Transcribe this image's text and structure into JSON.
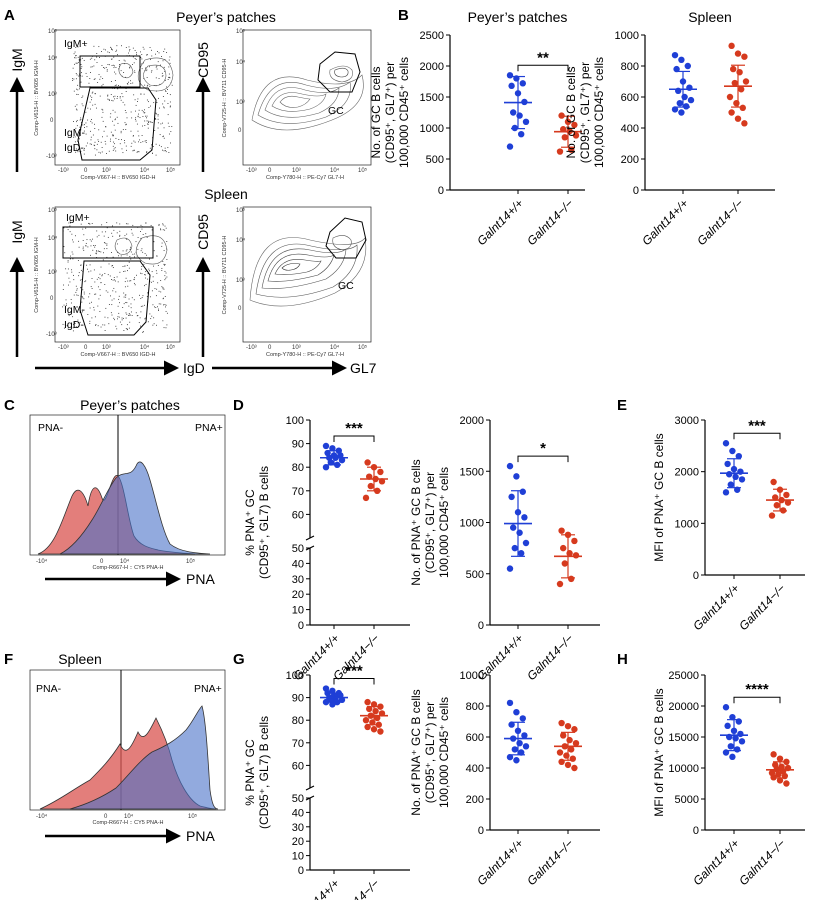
{
  "panels": {
    "A": "A",
    "B": "B",
    "C": "C",
    "D": "D",
    "E": "E",
    "F": "F",
    "G": "G",
    "H": "H"
  },
  "flow": {
    "title_pp": "Peyer’s patches",
    "title_spleen": "Spleen",
    "igm": "IgM",
    "igd": "IgD",
    "cd95": "CD95",
    "gl7": "GL7",
    "pna": "PNA",
    "gate_igm_pos": "IgM+",
    "gate_igm_neg": "IgM-",
    "gate_igd_neg": "IgD-",
    "gate_gc": "GC",
    "pna_neg": "PNA-",
    "pna_pos": "PNA+",
    "ch_igm_pp": "Comp-V615-H :: BV605 IGM-H",
    "ch_igd_pp": "Comp-V667-H :: BV650 IGD-H",
    "ch_cd95_pp": "Comp-V725-H :: BV711 CD95-H",
    "ch_gl7_pp": "Comp-Y780-H :: PE-Cy7 GL7-H",
    "ch_igm_sp": "Comp-V615-H :: BV605 IGM-H",
    "ch_igd_sp": "Comp-V667-H :: BV650 IGD-H",
    "ch_cd95_sp": "Comp-V725-H :: BV711 CD95-H",
    "ch_gl7_sp": "Comp-Y780-H :: PE-Cy7 GL7-H",
    "ch_pna_pp": "Comp-R667-H :: CY5 PNA-H",
    "ch_pna_sp": "Comp-R667-H :: CY5 PNA-H",
    "tk_m3": "-10³",
    "tk_0": "0",
    "tk_3": "10³",
    "tk_4": "10⁴",
    "tk_5": "10⁵",
    "tk_m4": "-10⁴"
  },
  "groups": [
    "Galnt14+/+",
    "Galnt14−/−"
  ],
  "colors": {
    "wt": "#1f3fd6",
    "ko": "#d63a1e",
    "hist_wt": "#4a72c8",
    "hist_ko": "#d9534f"
  },
  "chart_data": [
    {
      "id": "B1",
      "type": "scatter",
      "title": "Peyer’s patches",
      "ylabel_lines": [
        "No. of GC B cells",
        "(CD95⁺, GL7⁺) per",
        "100,000 CD45⁺ cells"
      ],
      "categories": [
        "Galnt14+/+",
        "Galnt14−/−"
      ],
      "ylim": [
        0,
        2500
      ],
      "yticks": [
        0,
        500,
        1000,
        1500,
        2000,
        2500
      ],
      "series": [
        {
          "name": "Galnt14+/+",
          "mean": 1410,
          "sd": 420,
          "values": [
            1850,
            1800,
            1720,
            1680,
            1560,
            1420,
            1250,
            1200,
            1100,
            1000,
            900,
            700
          ]
        },
        {
          "name": "Galnt14−/−",
          "mean": 940,
          "sd": 250,
          "values": [
            1200,
            1100,
            1050,
            980,
            950,
            880,
            850,
            650,
            620
          ]
        }
      ],
      "significance": "**"
    },
    {
      "id": "B2",
      "type": "scatter",
      "title": "Spleen",
      "ylabel_lines": [
        "No. of GC B cells",
        "(CD95⁺, GL7⁺) per",
        "100,000 CD45⁺ cells"
      ],
      "categories": [
        "Galnt14+/+",
        "Galnt14−/−"
      ],
      "ylim": [
        0,
        1000
      ],
      "yticks": [
        0,
        200,
        400,
        600,
        800,
        1000
      ],
      "series": [
        {
          "name": "Galnt14+/+",
          "mean": 650,
          "sd": 115,
          "values": [
            870,
            840,
            800,
            780,
            700,
            660,
            640,
            600,
            580,
            560,
            540,
            520,
            500
          ]
        },
        {
          "name": "Galnt14−/−",
          "mean": 670,
          "sd": 135,
          "values": [
            930,
            880,
            860,
            780,
            760,
            700,
            690,
            650,
            600,
            560,
            530,
            500,
            460,
            430
          ]
        }
      ],
      "significance": ""
    },
    {
      "id": "D1",
      "type": "scatter",
      "broken_axis": true,
      "ylabel_lines": [
        "% PNA⁺ GC",
        "(CD95⁺, GL7) B cells"
      ],
      "categories": [
        "Galnt14+/+",
        "Galnt14−/−"
      ],
      "ylim": [
        0,
        100
      ],
      "yticks": [
        0,
        10,
        20,
        30,
        40,
        50,
        60,
        70,
        80,
        90,
        100
      ],
      "series": [
        {
          "name": "Galnt14+/+",
          "mean": 84,
          "sd": 3,
          "values": [
            89,
            88,
            87,
            86,
            85,
            85,
            84,
            84,
            83,
            82,
            81,
            80
          ]
        },
        {
          "name": "Galnt14−/−",
          "mean": 75,
          "sd": 5,
          "values": [
            82,
            80,
            78,
            76,
            75,
            74,
            72,
            70,
            67
          ]
        }
      ],
      "significance": "***"
    },
    {
      "id": "D2",
      "type": "scatter",
      "ylabel_lines": [
        "No. of PNA⁺ GC B cells",
        "(CD95⁺, GL7⁺) per",
        "100,000 CD45⁺ cells"
      ],
      "categories": [
        "Galnt14+/+",
        "Galnt14−/−"
      ],
      "ylim": [
        0,
        2000
      ],
      "yticks": [
        0,
        500,
        1000,
        1500,
        2000
      ],
      "series": [
        {
          "name": "Galnt14+/+",
          "mean": 990,
          "sd": 320,
          "values": [
            1550,
            1450,
            1300,
            1250,
            1100,
            1050,
            950,
            900,
            800,
            750,
            700,
            550
          ]
        },
        {
          "name": "Galnt14−/−",
          "mean": 670,
          "sd": 210,
          "values": [
            920,
            880,
            820,
            750,
            700,
            680,
            600,
            450,
            400
          ]
        }
      ],
      "significance": "*"
    },
    {
      "id": "E",
      "type": "scatter",
      "ylabel_lines": [
        "MFI of PNA⁺ GC B cells"
      ],
      "categories": [
        "Galnt14+/+",
        "Galnt14−/−"
      ],
      "ylim": [
        0,
        3000
      ],
      "yticks": [
        0,
        1000,
        2000,
        3000
      ],
      "series": [
        {
          "name": "Galnt14+/+",
          "mean": 1970,
          "sd": 280,
          "values": [
            2550,
            2400,
            2300,
            2150,
            2050,
            2000,
            1950,
            1900,
            1850,
            1750,
            1650,
            1600
          ]
        },
        {
          "name": "Galnt14−/−",
          "mean": 1450,
          "sd": 210,
          "values": [
            1800,
            1650,
            1550,
            1500,
            1450,
            1400,
            1350,
            1250,
            1150
          ]
        }
      ],
      "significance": "***"
    },
    {
      "id": "G1",
      "type": "scatter",
      "broken_axis": true,
      "ylabel_lines": [
        "% PNA⁺ GC",
        "(CD95⁺, GL7) B cells"
      ],
      "categories": [
        "Galnt14+/+",
        "Galnt14−/−"
      ],
      "ylim": [
        0,
        100
      ],
      "yticks": [
        0,
        10,
        20,
        30,
        40,
        50,
        60,
        70,
        80,
        90,
        100
      ],
      "series": [
        {
          "name": "Galnt14+/+",
          "mean": 90,
          "sd": 2,
          "values": [
            94,
            93,
            92,
            92,
            91,
            91,
            90,
            90,
            89,
            89,
            88,
            88,
            87
          ]
        },
        {
          "name": "Galnt14−/−",
          "mean": 82,
          "sd": 4,
          "values": [
            88,
            87,
            86,
            85,
            84,
            83,
            82,
            81,
            80,
            79,
            78,
            77,
            76,
            75
          ]
        }
      ],
      "significance": "***"
    },
    {
      "id": "G2",
      "type": "scatter",
      "ylabel_lines": [
        "No. of PNA⁺ GC B cells",
        "(CD95⁺, GL7⁺) per",
        "100,000 CD45⁺ cells"
      ],
      "categories": [
        "Galnt14+/+",
        "Galnt14−/−"
      ],
      "ylim": [
        0,
        1000
      ],
      "yticks": [
        0,
        200,
        400,
        600,
        800,
        1000
      ],
      "series": [
        {
          "name": "Galnt14+/+",
          "mean": 590,
          "sd": 105,
          "values": [
            820,
            760,
            720,
            680,
            640,
            610,
            590,
            560,
            540,
            520,
            500,
            470,
            450
          ]
        },
        {
          "name": "Galnt14−/−",
          "mean": 540,
          "sd": 90,
          "values": [
            690,
            670,
            650,
            610,
            580,
            560,
            540,
            520,
            500,
            480,
            460,
            440,
            420,
            400
          ]
        }
      ],
      "significance": ""
    },
    {
      "id": "H",
      "type": "scatter",
      "ylabel_lines": [
        "MFI of PNA⁺ GC B cells"
      ],
      "categories": [
        "Galnt14+/+",
        "Galnt14−/−"
      ],
      "ylim": [
        0,
        25000
      ],
      "yticks": [
        0,
        5000,
        10000,
        15000,
        20000,
        25000
      ],
      "series": [
        {
          "name": "Galnt14+/+",
          "mean": 15300,
          "sd": 2500,
          "values": [
            19800,
            18200,
            17500,
            16800,
            16000,
            15500,
            15000,
            14800,
            14300,
            13500,
            13000,
            12500,
            11800
          ]
        },
        {
          "name": "Galnt14−/−",
          "mean": 9700,
          "sd": 1300,
          "values": [
            12200,
            11500,
            11000,
            10500,
            10200,
            10000,
            9800,
            9500,
            9200,
            9000,
            8700,
            8500,
            8000,
            7500
          ]
        }
      ],
      "significance": "****"
    }
  ]
}
